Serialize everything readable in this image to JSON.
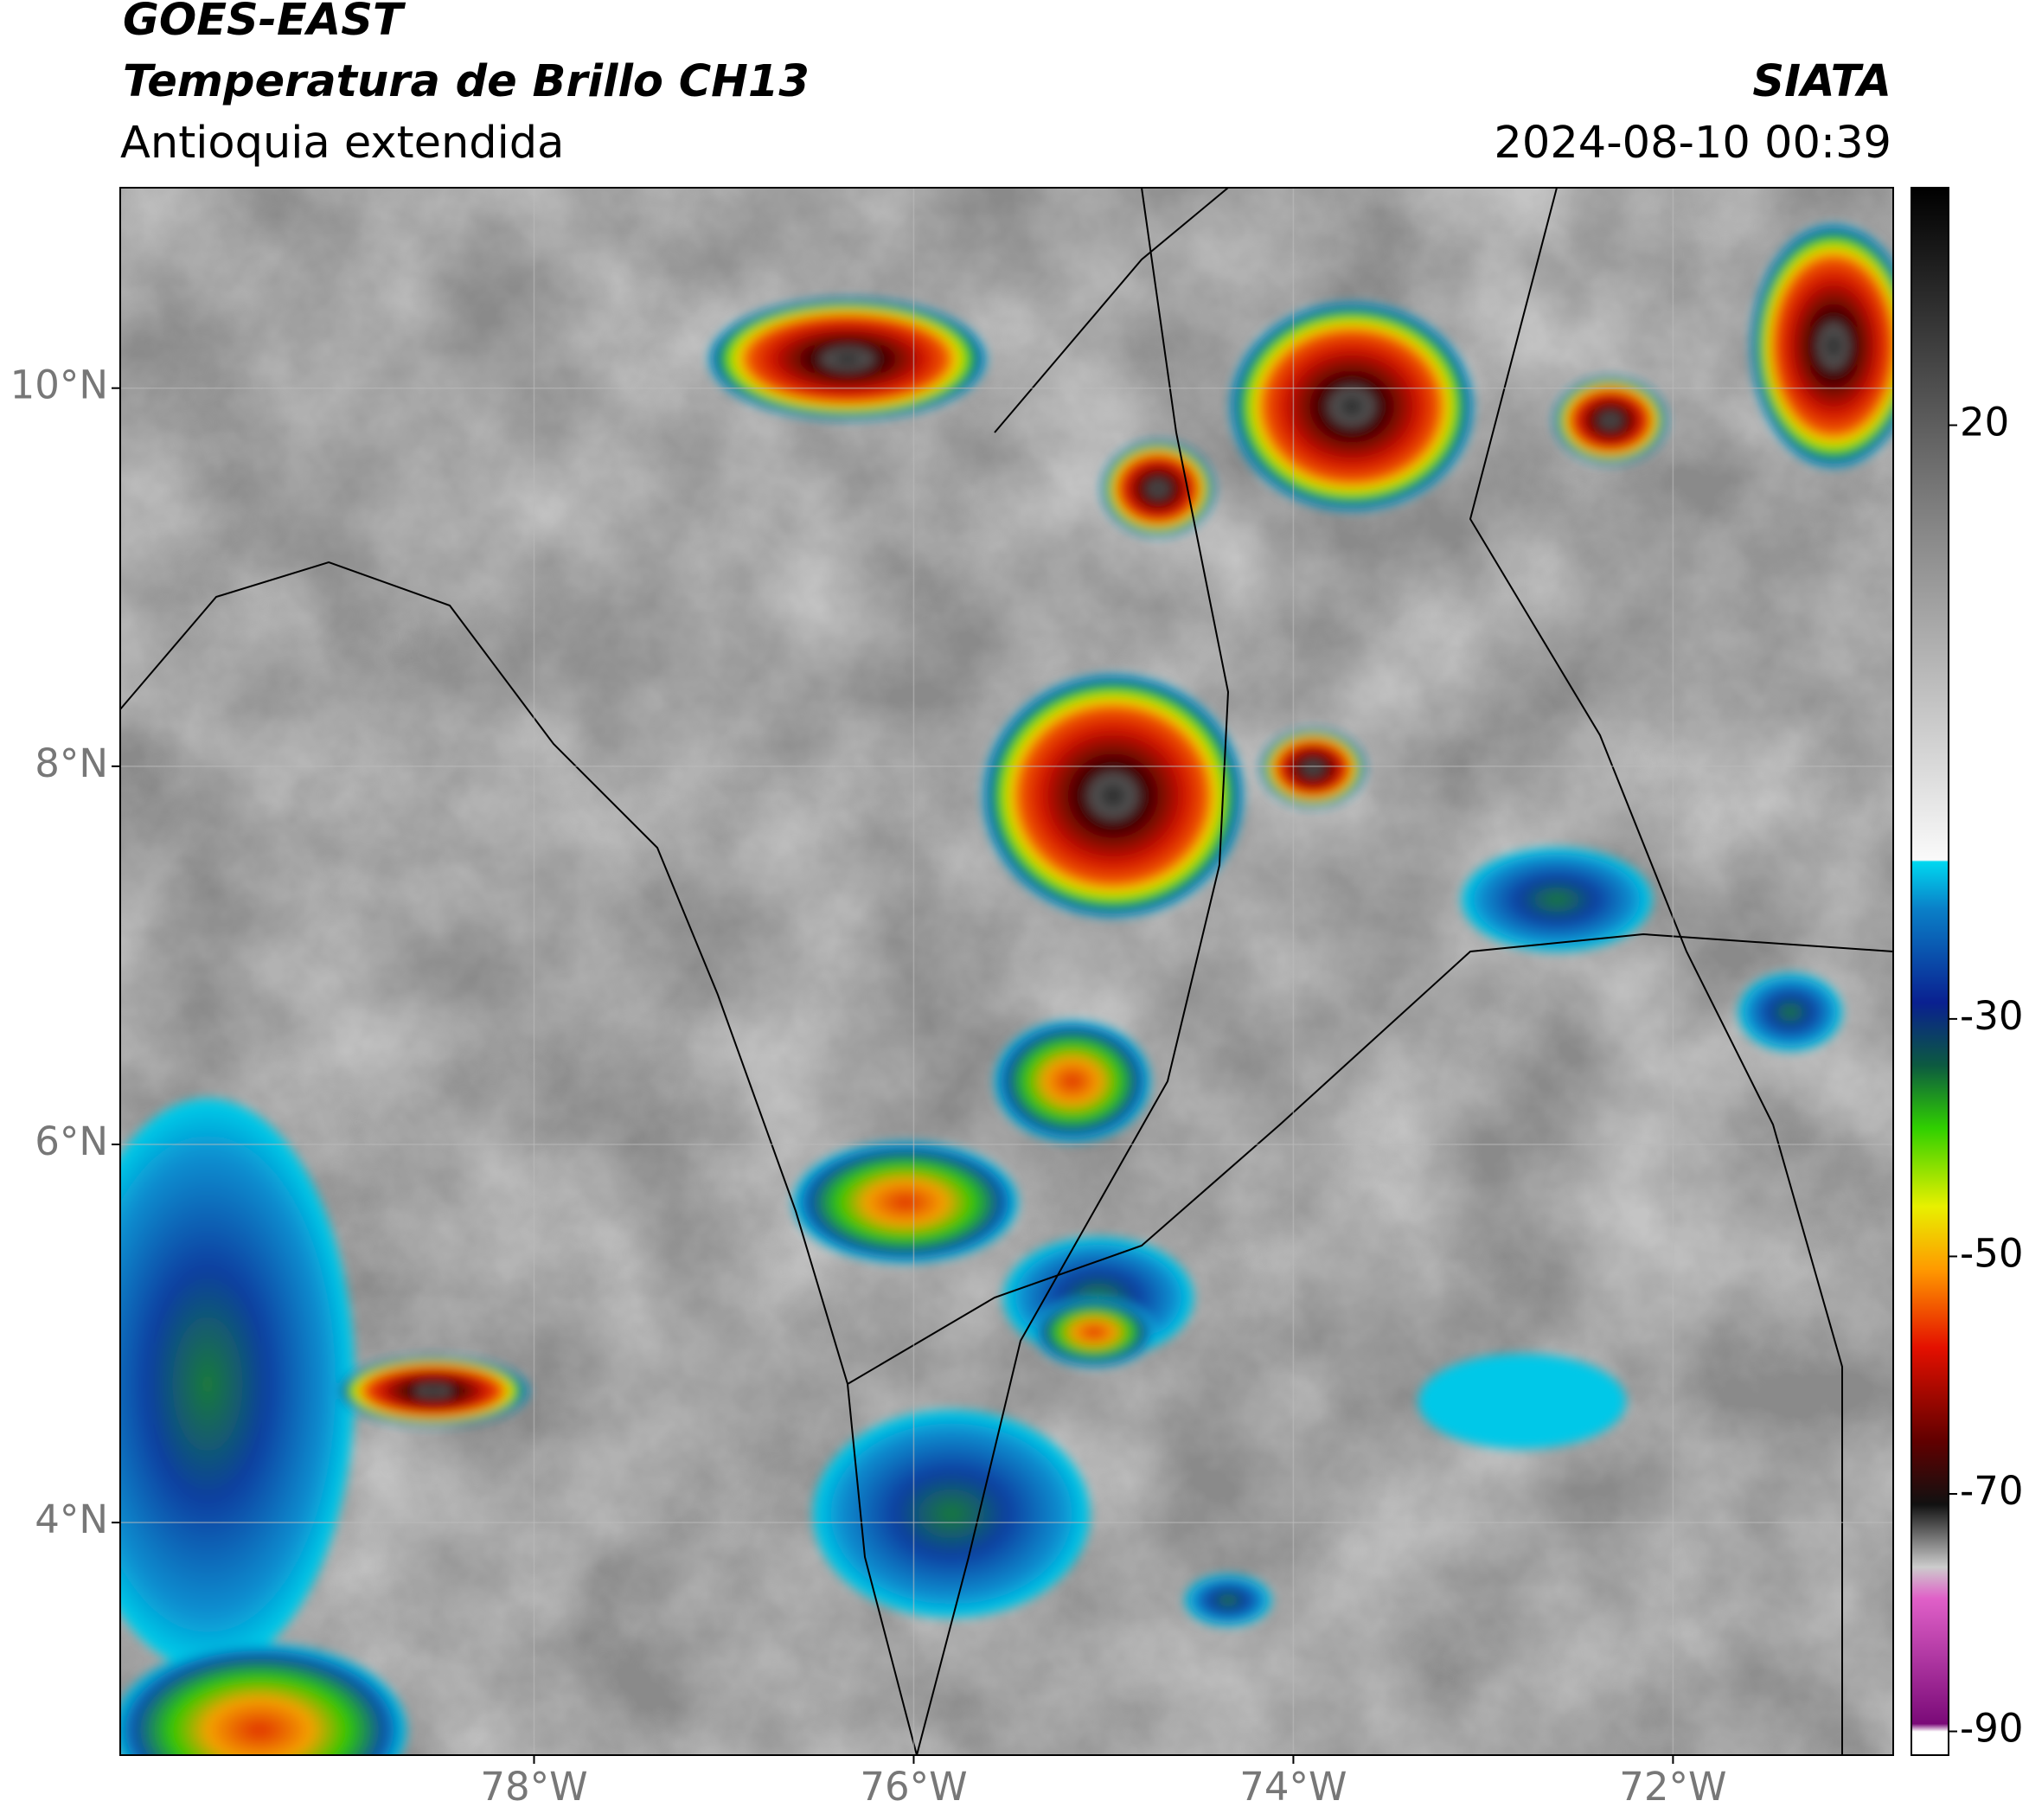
{
  "header": {
    "title": "GOES-EAST",
    "subtitle": "Temperatura de Brillo CH13",
    "region": "Antioquia extendida",
    "source": "SIATA",
    "datetime": "2024-08-10 00:39"
  },
  "chart_data": {
    "type": "map",
    "xlim": [
      -80.18,
      -70.84
    ],
    "ylim": [
      2.77,
      11.06
    ],
    "xticks": [
      {
        "value": -78,
        "label": "78°W"
      },
      {
        "value": -76,
        "label": "76°W"
      },
      {
        "value": -74,
        "label": "74°W"
      },
      {
        "value": -72,
        "label": "72°W"
      }
    ],
    "yticks": [
      {
        "value": 4,
        "label": "4°N"
      },
      {
        "value": 6,
        "label": "6°N"
      },
      {
        "value": 8,
        "label": "8°N"
      },
      {
        "value": 10,
        "label": "10°N"
      }
    ],
    "grid": true,
    "colorbar": {
      "lim": [
        -92,
        40
      ],
      "ticks": [
        20,
        -30,
        -50,
        -70,
        -90
      ]
    }
  }
}
